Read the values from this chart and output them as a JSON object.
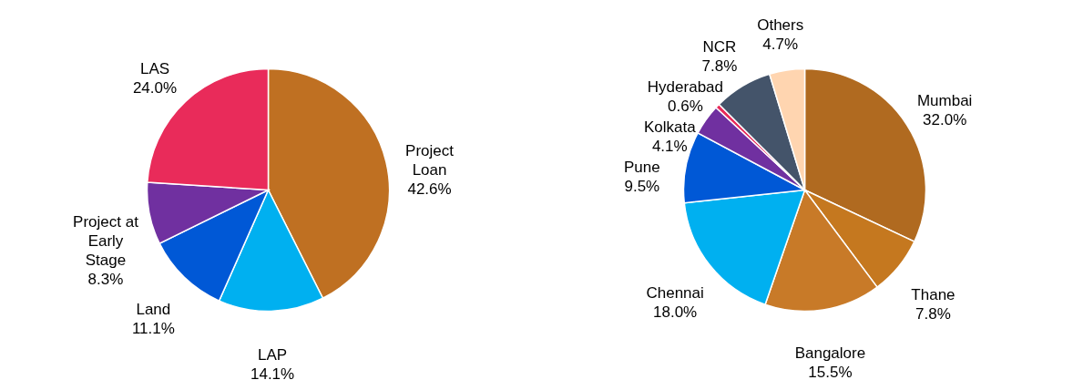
{
  "chart_data": [
    {
      "type": "pie",
      "categories": [
        "Project Loan",
        "LAP",
        "Land",
        "Project at Early Stage",
        "LAS"
      ],
      "values": [
        42.6,
        14.1,
        11.1,
        8.3,
        24.0
      ],
      "value_labels": [
        "42.6%",
        "14.1%",
        "11.1%",
        "8.3%",
        "24.0%"
      ],
      "colors": [
        "#bf7022",
        "#00b0f0",
        "#0058d6",
        "#7030a0",
        "#e92b5a"
      ]
    },
    {
      "type": "pie",
      "categories": [
        "Mumbai",
        "Thane",
        "Bangalore",
        "Chennai",
        "Pune",
        "Kolkata",
        "Hyderabad",
        "NCR",
        "Others"
      ],
      "values": [
        32.0,
        7.8,
        15.5,
        18.0,
        9.5,
        4.1,
        0.6,
        7.8,
        4.7
      ],
      "value_labels": [
        "32.0%",
        "7.8%",
        "15.5%",
        "18.0%",
        "9.5%",
        "4.1%",
        "0.6%",
        "7.8%",
        "4.7%"
      ],
      "colors": [
        "#b06a20",
        "#c5781f",
        "#c87a28",
        "#00b0f0",
        "#0058d6",
        "#7030a0",
        "#e92b5a",
        "#44546a",
        "#ffd5b0"
      ]
    }
  ]
}
